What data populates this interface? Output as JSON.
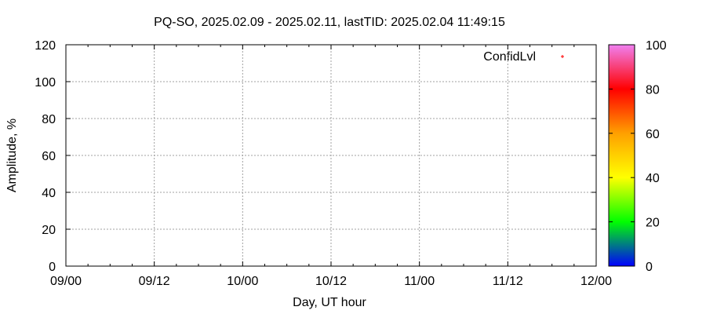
{
  "chart_data": {
    "type": "scatter",
    "title": "PQ-SO, 2025.02.09 - 2025.02.11, lastTID: 2025.02.04 11:49:15",
    "xlabel": "Day, UT hour",
    "ylabel": "Amplitude, %",
    "x_tick_labels": [
      "09/00",
      "09/12",
      "10/00",
      "10/12",
      "11/00",
      "11/12",
      "12/00"
    ],
    "xlim_hours": [
      0,
      72
    ],
    "ylim": [
      0,
      120
    ],
    "y_ticks": [
      0,
      20,
      40,
      60,
      80,
      100,
      120
    ],
    "grid": true,
    "legend": {
      "entries": [
        "ConfidLvl"
      ],
      "placement": "top-right"
    },
    "series": [
      {
        "name": "ConfidLvl",
        "points": [],
        "color": "#ff0000"
      }
    ],
    "colorbar": {
      "range": [
        0,
        100
      ],
      "ticks": [
        0,
        20,
        40,
        60,
        80,
        100
      ],
      "stops": [
        {
          "value": 0,
          "color": "#0000ff"
        },
        {
          "value": 20,
          "color": "#00ff00"
        },
        {
          "value": 40,
          "color": "#ffff00"
        },
        {
          "value": 60,
          "color": "#ffa000"
        },
        {
          "value": 80,
          "color": "#ff0000"
        },
        {
          "value": 100,
          "color": "#f080f0"
        }
      ]
    }
  }
}
